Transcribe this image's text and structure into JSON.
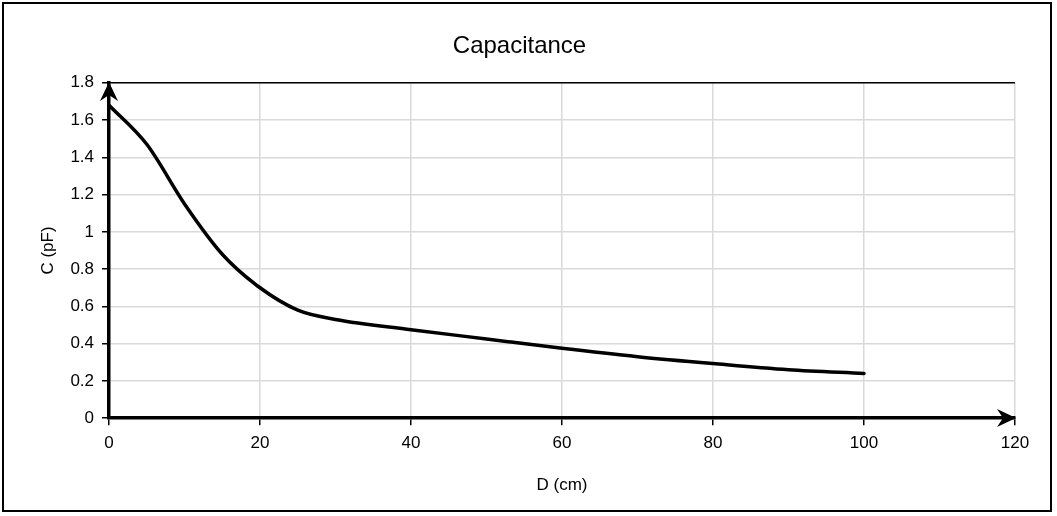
{
  "chart_data": {
    "type": "line",
    "title": "Capacitance",
    "xlabel": "D (cm)",
    "ylabel": "C (pF)",
    "x": [
      0,
      5,
      10,
      15,
      20,
      25,
      30,
      40,
      50,
      60,
      70,
      80,
      90,
      100
    ],
    "series": [
      {
        "color": "#000000",
        "values": [
          1.68,
          1.47,
          1.15,
          0.88,
          0.7,
          0.58,
          0.53,
          0.475,
          0.425,
          0.375,
          0.33,
          0.293,
          0.26,
          0.24
        ]
      }
    ],
    "xlim": [
      0,
      120
    ],
    "xticks": [
      0,
      20,
      40,
      60,
      80,
      100,
      120
    ],
    "ylim": [
      0,
      1.8
    ],
    "yticks": [
      0,
      0.2,
      0.4,
      0.6,
      0.8,
      1,
      1.2,
      1.4,
      1.6,
      1.8
    ],
    "grid": true,
    "legend": false,
    "marker": "none",
    "line_style": "solid"
  }
}
